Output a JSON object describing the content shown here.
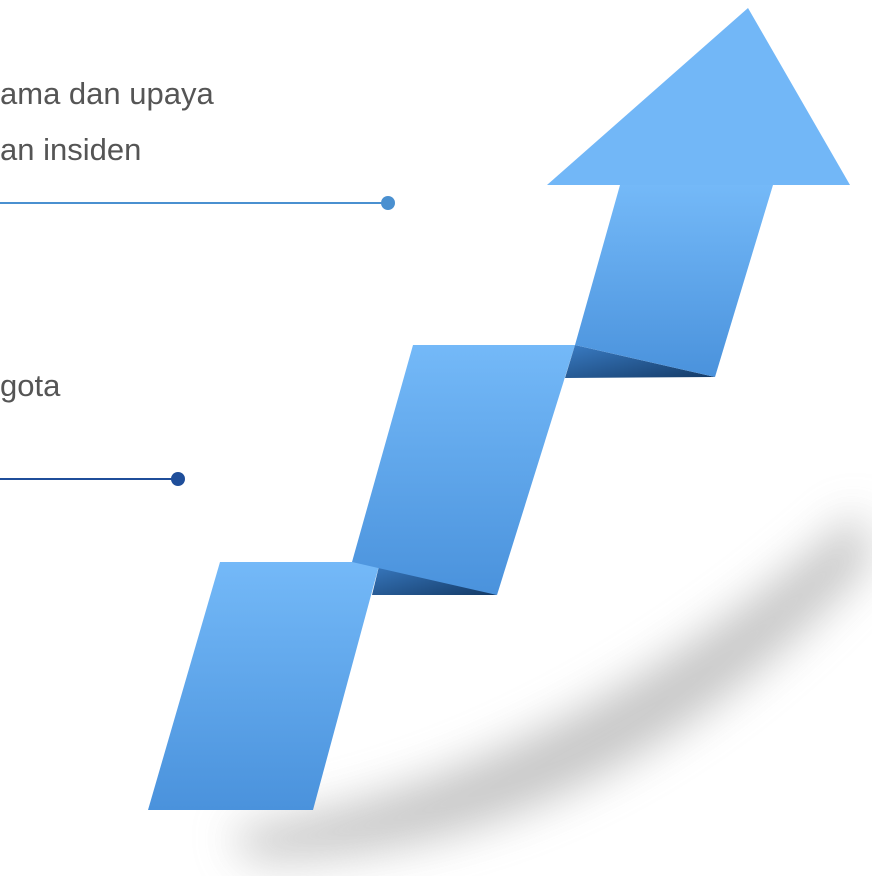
{
  "items": [
    {
      "lines": [
        "ama dan upaya",
        "an insiden"
      ]
    },
    {
      "lines": [
        "gota"
      ]
    }
  ]
}
